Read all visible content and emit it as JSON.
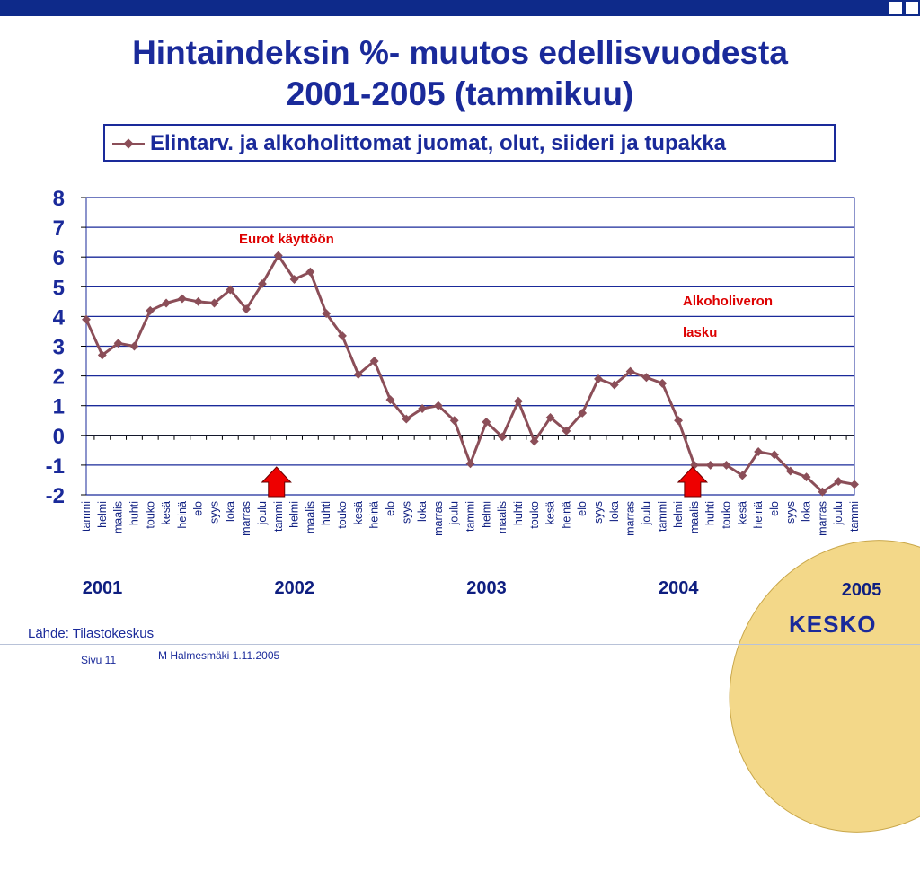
{
  "header": {
    "title_line1": "Hintaindeksin %- muutos edellisvuodesta",
    "title_line2": "2001-2005 (tammikuu)"
  },
  "legend": {
    "series_label": "Elintarv. ja alkoholittomat juomat, olut, siideri ja tupakka"
  },
  "annotations": {
    "euro": "Eurot käyttöön",
    "alcohol_line1": "Alkoholiveron",
    "alcohol_line2": "lasku"
  },
  "footer": {
    "source": "Lähde: Tilastokeskus",
    "page": "Sivu 11",
    "author": "M Halmesmäki 1.11.2005",
    "logo": "KESKO"
  },
  "colors": {
    "title": "#1a2a9a",
    "series": "#8b4e58",
    "grid": "#1a2a9a",
    "annotation": "#dd0000",
    "arrow_fill": "#ee0000",
    "logo_bg": "#f3d889"
  },
  "chart_data": {
    "type": "line",
    "title": "Hintaindeksin %- muutos edellisvuodesta 2001-2005 (tammikuu)",
    "ylim": [
      -2,
      8
    ],
    "yticks": [
      8,
      7,
      6,
      5,
      4,
      3,
      2,
      1,
      0,
      -1,
      -2
    ],
    "grid": true,
    "legend_position": "top",
    "categories": [
      "tammi",
      "helmi",
      "maalis",
      "huhti",
      "touko",
      "kesä",
      "heinä",
      "elo",
      "syys",
      "loka",
      "marras",
      "joulu",
      "tammi",
      "helmi",
      "maalis",
      "huhti",
      "touko",
      "kesä",
      "heinä",
      "elo",
      "syys",
      "loka",
      "marras",
      "joulu",
      "tammi",
      "helmi",
      "maalis",
      "huhti",
      "touko",
      "kesä",
      "heinä",
      "elo",
      "syys",
      "loka",
      "marras",
      "joulu",
      "tammi",
      "helmi",
      "maalis",
      "huhti",
      "touko",
      "kesä",
      "heinä",
      "elo",
      "syys",
      "loka",
      "marras",
      "joulu",
      "tammi"
    ],
    "years": [
      {
        "label": "2001",
        "start_index": 0
      },
      {
        "label": "2002",
        "start_index": 12
      },
      {
        "label": "2003",
        "start_index": 24
      },
      {
        "label": "2004",
        "start_index": 36
      },
      {
        "label": "2005",
        "start_index": 48
      }
    ],
    "series": [
      {
        "name": "Elintarv. ja alkoholittomat juomat, olut, siideri ja tupakka",
        "values": [
          3.9,
          2.7,
          3.1,
          3.0,
          4.2,
          4.45,
          4.6,
          4.5,
          4.45,
          4.9,
          4.25,
          5.1,
          6.05,
          5.25,
          5.5,
          4.1,
          3.35,
          2.05,
          2.5,
          1.2,
          0.55,
          0.9,
          1.0,
          0.5,
          -0.95,
          0.45,
          -0.05,
          1.15,
          -0.2,
          0.6,
          0.15,
          0.75,
          1.9,
          1.7,
          2.15,
          1.95,
          1.75,
          0.5,
          -1.0,
          -1.0,
          -1.0,
          -1.35,
          -0.55,
          -0.65,
          -1.2,
          -1.4,
          -1.9,
          -1.55,
          -1.65
        ]
      }
    ],
    "markers": [
      {
        "label": "Eurot käyttöön",
        "index": 12
      },
      {
        "label": "Alkoholiveron lasku",
        "index": 38
      }
    ]
  }
}
